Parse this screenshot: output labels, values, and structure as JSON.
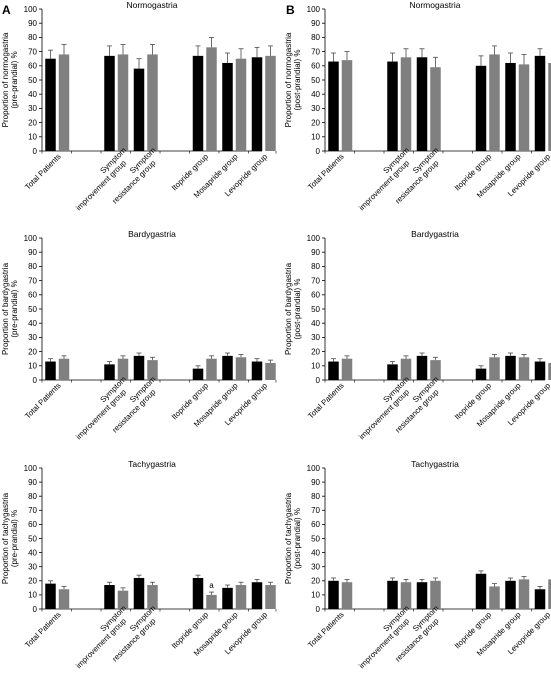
{
  "figure": {
    "panel_letters": [
      "A",
      "B"
    ]
  },
  "colors": {
    "black_bar": "#000000",
    "gray_bar": "#808080",
    "error_bar": "#4a4a4a",
    "axis": "#000000"
  },
  "chart_data": [
    {
      "type": "bar",
      "title": "Normogastria",
      "ylabel": "Proportion of normogastria (pre-prandial) %",
      "ylabel_lines": [
        "Proportion of normogastria",
        "(pre-prandial) %"
      ],
      "ylim": [
        0,
        100
      ],
      "yticks": [
        0,
        10,
        20,
        30,
        40,
        50,
        60,
        70,
        80,
        90,
        100
      ],
      "groups": [
        {
          "label": [
            "Total Patients"
          ],
          "bars": [
            {
              "value": 65,
              "err": 6,
              "color": "#000000"
            },
            {
              "value": 68,
              "err": 7,
              "color": "#808080"
            }
          ]
        },
        {
          "label": [
            "Symptom",
            "improvement group"
          ],
          "bars": [
            {
              "value": 67,
              "err": 7,
              "color": "#000000"
            },
            {
              "value": 68,
              "err": 7,
              "color": "#808080"
            }
          ]
        },
        {
          "label": [
            "Symptom",
            "resistance group"
          ],
          "bars": [
            {
              "value": 58,
              "err": 7,
              "color": "#000000"
            },
            {
              "value": 68,
              "err": 7,
              "color": "#808080"
            }
          ]
        },
        {
          "label": [
            "Itopride group"
          ],
          "bars": [
            {
              "value": 67,
              "err": 7,
              "color": "#000000"
            },
            {
              "value": 73,
              "err": 7,
              "color": "#808080"
            }
          ]
        },
        {
          "label": [
            "Mosapride group"
          ],
          "bars": [
            {
              "value": 62,
              "err": 7,
              "color": "#000000"
            },
            {
              "value": 65,
              "err": 7,
              "color": "#808080"
            }
          ]
        },
        {
          "label": [
            "Levopride group"
          ],
          "bars": [
            {
              "value": 66,
              "err": 7,
              "color": "#000000"
            },
            {
              "value": 67,
              "err": 7,
              "color": "#808080"
            }
          ]
        }
      ],
      "annotations": []
    },
    {
      "type": "bar",
      "title": "Normogastria",
      "ylabel": "Proportion of normogastria (post-prandial) %",
      "ylabel_lines": [
        "Proportion of normogastria",
        "(post-prandial) %"
      ],
      "ylim": [
        0,
        100
      ],
      "yticks": [
        0,
        10,
        20,
        30,
        40,
        50,
        60,
        70,
        80,
        90,
        100
      ],
      "groups": [
        {
          "label": [
            "Total Patients"
          ],
          "bars": [
            {
              "value": 63,
              "err": 6,
              "color": "#000000"
            },
            {
              "value": 64,
              "err": 6,
              "color": "#808080"
            }
          ]
        },
        {
          "label": [
            "Symptom",
            "improvement group"
          ],
          "bars": [
            {
              "value": 63,
              "err": 6,
              "color": "#000000"
            },
            {
              "value": 66,
              "err": 6,
              "color": "#808080"
            }
          ]
        },
        {
          "label": [
            "Symptom",
            "resistance group"
          ],
          "bars": [
            {
              "value": 66,
              "err": 6,
              "color": "#000000"
            },
            {
              "value": 59,
              "err": 7,
              "color": "#808080"
            }
          ]
        },
        {
          "label": [
            "Itopride group"
          ],
          "bars": [
            {
              "value": 60,
              "err": 7,
              "color": "#000000"
            },
            {
              "value": 68,
              "err": 6,
              "color": "#808080"
            }
          ]
        },
        {
          "label": [
            "Mosapride group"
          ],
          "bars": [
            {
              "value": 62,
              "err": 7,
              "color": "#000000"
            },
            {
              "value": 61,
              "err": 7,
              "color": "#808080"
            }
          ]
        },
        {
          "label": [
            "Levopride group"
          ],
          "bars": [
            {
              "value": 67,
              "err": 5,
              "color": "#000000"
            },
            {
              "value": 62,
              "err": 7,
              "color": "#808080"
            }
          ]
        }
      ],
      "annotations": []
    },
    {
      "type": "bar",
      "title": "Bardygastria",
      "ylabel": "Proportion of bardygastria (pre-prandial) %",
      "ylabel_lines": [
        "Proportion of bardygastria",
        "(pre-prandial) %"
      ],
      "ylim": [
        0,
        100
      ],
      "yticks": [
        0,
        10,
        20,
        30,
        40,
        50,
        60,
        70,
        80,
        90,
        100
      ],
      "groups": [
        {
          "label": [
            "Total Patients"
          ],
          "bars": [
            {
              "value": 13,
              "err": 2,
              "color": "#000000"
            },
            {
              "value": 15,
              "err": 2,
              "color": "#808080"
            }
          ]
        },
        {
          "label": [
            "Symptom",
            "improvement group"
          ],
          "bars": [
            {
              "value": 11,
              "err": 2,
              "color": "#000000"
            },
            {
              "value": 15,
              "err": 2,
              "color": "#808080"
            }
          ]
        },
        {
          "label": [
            "Symptom",
            "resistance group"
          ],
          "bars": [
            {
              "value": 17,
              "err": 2,
              "color": "#000000"
            },
            {
              "value": 14,
              "err": 2,
              "color": "#808080"
            }
          ]
        },
        {
          "label": [
            "Itopride group"
          ],
          "bars": [
            {
              "value": 8,
              "err": 2,
              "color": "#000000"
            },
            {
              "value": 15,
              "err": 2,
              "color": "#808080"
            }
          ]
        },
        {
          "label": [
            "Mosapride group"
          ],
          "bars": [
            {
              "value": 17,
              "err": 2,
              "color": "#000000"
            },
            {
              "value": 16,
              "err": 2,
              "color": "#808080"
            }
          ]
        },
        {
          "label": [
            "Levopride group"
          ],
          "bars": [
            {
              "value": 13,
              "err": 2,
              "color": "#000000"
            },
            {
              "value": 12,
              "err": 2,
              "color": "#808080"
            }
          ]
        }
      ],
      "annotations": []
    },
    {
      "type": "bar",
      "title": "Bardygastria",
      "ylabel": "Proportion of bardygastria (post-prandial) %",
      "ylabel_lines": [
        "Proportion of bardygastria",
        "(post-prandial) %"
      ],
      "ylim": [
        0,
        100
      ],
      "yticks": [
        0,
        10,
        20,
        30,
        40,
        50,
        60,
        70,
        80,
        90,
        100
      ],
      "groups": [
        {
          "label": [
            "Total Patients"
          ],
          "bars": [
            {
              "value": 13,
              "err": 2,
              "color": "#000000"
            },
            {
              "value": 15,
              "err": 2,
              "color": "#808080"
            }
          ]
        },
        {
          "label": [
            "Symptom",
            "improvement group"
          ],
          "bars": [
            {
              "value": 11,
              "err": 2,
              "color": "#000000"
            },
            {
              "value": 15,
              "err": 2,
              "color": "#808080"
            }
          ]
        },
        {
          "label": [
            "Symptom",
            "resistance group"
          ],
          "bars": [
            {
              "value": 17,
              "err": 2,
              "color": "#000000"
            },
            {
              "value": 14,
              "err": 2,
              "color": "#808080"
            }
          ]
        },
        {
          "label": [
            "Itopride group"
          ],
          "bars": [
            {
              "value": 8,
              "err": 2,
              "color": "#000000"
            },
            {
              "value": 16,
              "err": 2,
              "color": "#808080"
            }
          ]
        },
        {
          "label": [
            "Mosapride group"
          ],
          "bars": [
            {
              "value": 17,
              "err": 2,
              "color": "#000000"
            },
            {
              "value": 16,
              "err": 2,
              "color": "#808080"
            }
          ]
        },
        {
          "label": [
            "Levopride group"
          ],
          "bars": [
            {
              "value": 13,
              "err": 2,
              "color": "#000000"
            },
            {
              "value": 12,
              "err": 2,
              "color": "#808080"
            }
          ]
        }
      ],
      "annotations": []
    },
    {
      "type": "bar",
      "title": "Tachygastria",
      "ylabel": "Proportion of tachygastria (pre-prandial) %",
      "ylabel_lines": [
        "Proportion of tachygastria",
        "(pre-prandial) %"
      ],
      "ylim": [
        0,
        100
      ],
      "yticks": [
        0,
        10,
        20,
        30,
        40,
        50,
        60,
        70,
        80,
        90,
        100
      ],
      "groups": [
        {
          "label": [
            "Total Patients"
          ],
          "bars": [
            {
              "value": 18,
              "err": 2,
              "color": "#000000"
            },
            {
              "value": 14,
              "err": 2,
              "color": "#808080"
            }
          ]
        },
        {
          "label": [
            "Symptom",
            "improvement group"
          ],
          "bars": [
            {
              "value": 17,
              "err": 2,
              "color": "#000000"
            },
            {
              "value": 13,
              "err": 2,
              "color": "#808080"
            }
          ]
        },
        {
          "label": [
            "Symptom",
            "resistance group"
          ],
          "bars": [
            {
              "value": 22,
              "err": 2,
              "color": "#000000"
            },
            {
              "value": 17,
              "err": 2,
              "color": "#808080"
            }
          ]
        },
        {
          "label": [
            "Itopride group"
          ],
          "bars": [
            {
              "value": 22,
              "err": 2,
              "color": "#000000"
            },
            {
              "value": 10,
              "err": 2,
              "color": "#808080"
            }
          ]
        },
        {
          "label": [
            "Mosapride group"
          ],
          "bars": [
            {
              "value": 15,
              "err": 2,
              "color": "#000000"
            },
            {
              "value": 17,
              "err": 2,
              "color": "#808080"
            }
          ]
        },
        {
          "label": [
            "Levopride group"
          ],
          "bars": [
            {
              "value": 19,
              "err": 2,
              "color": "#000000"
            },
            {
              "value": 17,
              "err": 2,
              "color": "#808080"
            }
          ]
        }
      ],
      "annotations": [
        {
          "text": "a",
          "group": 3,
          "bar": 1
        }
      ]
    },
    {
      "type": "bar",
      "title": "Tachygastria",
      "ylabel": "Proportion of tachygastria (post-prandial) %",
      "ylabel_lines": [
        "Proportion of tachygastria",
        "(post-prandial) %"
      ],
      "ylim": [
        0,
        100
      ],
      "yticks": [
        0,
        10,
        20,
        30,
        40,
        50,
        60,
        70,
        80,
        90,
        100
      ],
      "groups": [
        {
          "label": [
            "Total Patients"
          ],
          "bars": [
            {
              "value": 20,
              "err": 2,
              "color": "#000000"
            },
            {
              "value": 19,
              "err": 2,
              "color": "#808080"
            }
          ]
        },
        {
          "label": [
            "Symptom",
            "improvement group"
          ],
          "bars": [
            {
              "value": 20,
              "err": 2,
              "color": "#000000"
            },
            {
              "value": 19,
              "err": 2,
              "color": "#808080"
            }
          ]
        },
        {
          "label": [
            "Symptom",
            "resistance group"
          ],
          "bars": [
            {
              "value": 19,
              "err": 2,
              "color": "#000000"
            },
            {
              "value": 20,
              "err": 2,
              "color": "#808080"
            }
          ]
        },
        {
          "label": [
            "Itopride group"
          ],
          "bars": [
            {
              "value": 25,
              "err": 2,
              "color": "#000000"
            },
            {
              "value": 16,
              "err": 2,
              "color": "#808080"
            }
          ]
        },
        {
          "label": [
            "Mosapride group"
          ],
          "bars": [
            {
              "value": 20,
              "err": 2,
              "color": "#000000"
            },
            {
              "value": 21,
              "err": 2,
              "color": "#808080"
            }
          ]
        },
        {
          "label": [
            "Levopride group"
          ],
          "bars": [
            {
              "value": 14,
              "err": 2,
              "color": "#000000"
            },
            {
              "value": 21,
              "err": 2,
              "color": "#808080"
            }
          ]
        }
      ],
      "annotations": []
    }
  ]
}
